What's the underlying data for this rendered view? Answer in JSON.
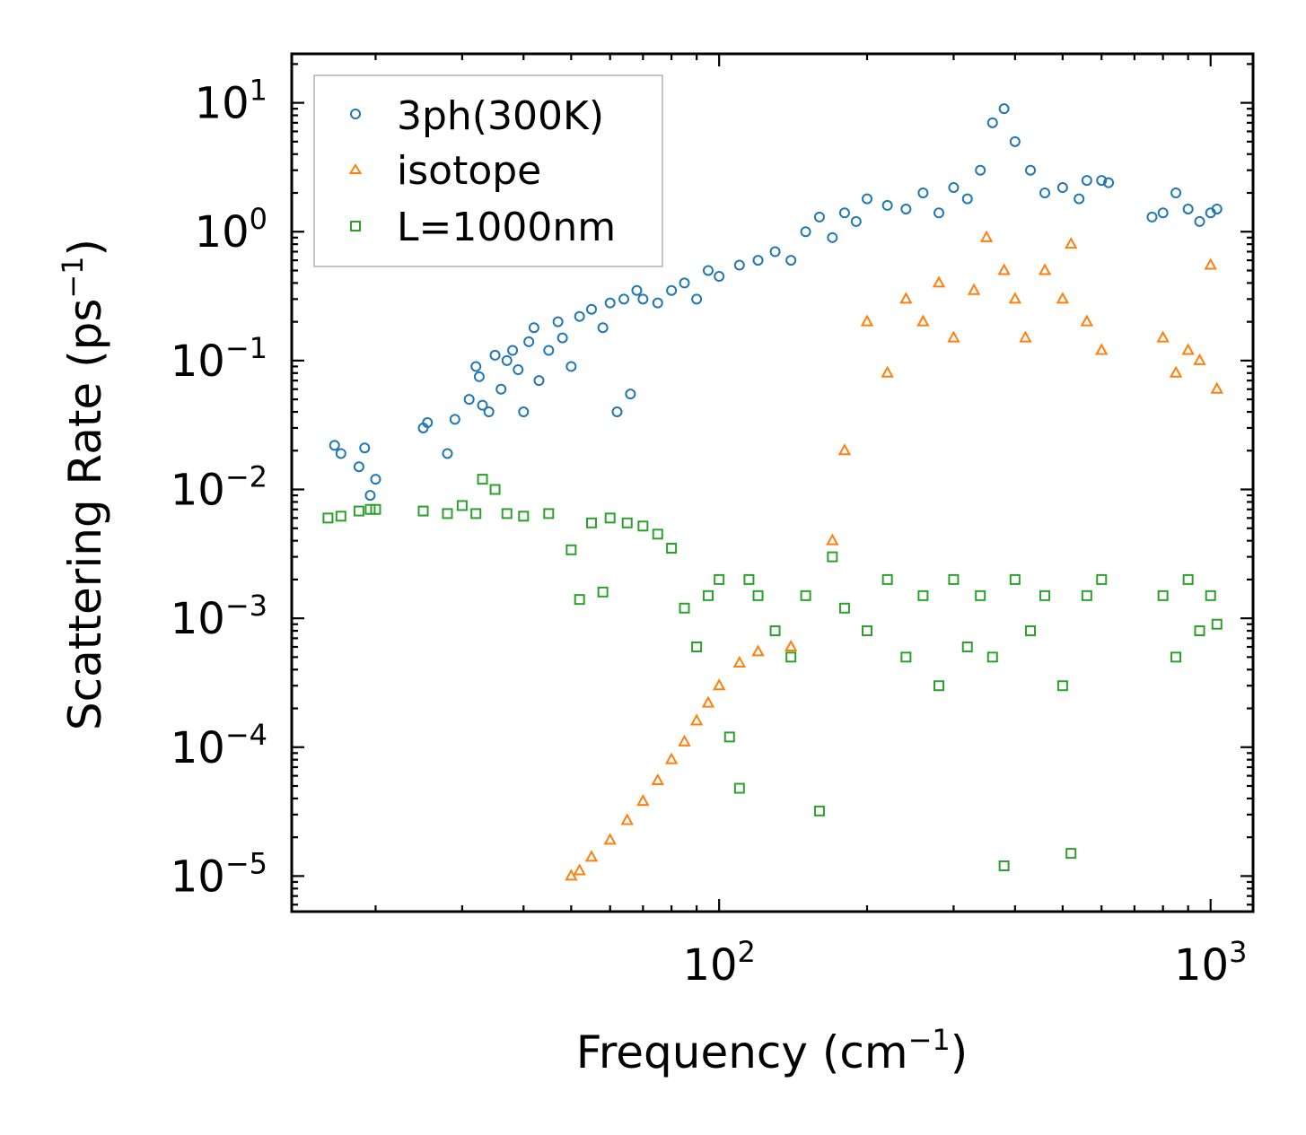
{
  "chart_data": {
    "type": "scatter",
    "xscale": "log",
    "yscale": "log",
    "xlim": [
      13.5,
      1220
    ],
    "ylim": [
      5.3e-06,
      24
    ],
    "xlabel": {
      "main": "Frequency (cm",
      "sup": "−1",
      "end": ")"
    },
    "ylabel": {
      "main": "Scattering Rate (ps",
      "sup": "−1",
      "end": ")"
    },
    "x_ticks": [
      {
        "value": 100,
        "base": "10",
        "exp": "2"
      },
      {
        "value": 1000,
        "base": "10",
        "exp": "3"
      }
    ],
    "y_ticks": [
      {
        "value": 1e-05,
        "base": "10",
        "exp": "−5"
      },
      {
        "value": 0.0001,
        "base": "10",
        "exp": "−4"
      },
      {
        "value": 0.001,
        "base": "10",
        "exp": "−3"
      },
      {
        "value": 0.01,
        "base": "10",
        "exp": "−2"
      },
      {
        "value": 0.1,
        "base": "10",
        "exp": "−1"
      },
      {
        "value": 1,
        "base": "10",
        "exp": "0"
      },
      {
        "value": 10,
        "base": "10",
        "exp": "1"
      }
    ],
    "legend_position": "top-left",
    "series": [
      {
        "name": "3ph(300K)",
        "marker": "circle",
        "color": "#1f77b4",
        "points": [
          [
            16.5,
            0.022
          ],
          [
            17.0,
            0.019
          ],
          [
            18.5,
            0.015
          ],
          [
            19.0,
            0.021
          ],
          [
            19.5,
            0.009
          ],
          [
            20.0,
            0.012
          ],
          [
            25,
            0.03
          ],
          [
            25.5,
            0.033
          ],
          [
            28,
            0.019
          ],
          [
            29,
            0.035
          ],
          [
            31,
            0.05
          ],
          [
            32,
            0.09
          ],
          [
            32.5,
            0.075
          ],
          [
            33,
            0.045
          ],
          [
            34,
            0.04
          ],
          [
            35,
            0.11
          ],
          [
            36,
            0.06
          ],
          [
            37,
            0.1
          ],
          [
            38,
            0.12
          ],
          [
            39,
            0.085
          ],
          [
            40,
            0.04
          ],
          [
            41,
            0.14
          ],
          [
            42,
            0.18
          ],
          [
            43,
            0.07
          ],
          [
            45,
            0.12
          ],
          [
            47,
            0.2
          ],
          [
            48,
            0.15
          ],
          [
            50,
            0.09
          ],
          [
            52,
            0.22
          ],
          [
            55,
            0.25
          ],
          [
            58,
            0.18
          ],
          [
            60,
            0.28
          ],
          [
            62,
            0.04
          ],
          [
            64,
            0.3
          ],
          [
            66,
            0.055
          ],
          [
            68,
            0.35
          ],
          [
            70,
            0.3
          ],
          [
            75,
            0.28
          ],
          [
            80,
            0.35
          ],
          [
            85,
            0.4
          ],
          [
            90,
            0.3
          ],
          [
            95,
            0.5
          ],
          [
            100,
            0.45
          ],
          [
            110,
            0.55
          ],
          [
            120,
            0.6
          ],
          [
            130,
            0.7
          ],
          [
            140,
            0.6
          ],
          [
            150,
            1.0
          ],
          [
            160,
            1.3
          ],
          [
            170,
            0.9
          ],
          [
            180,
            1.4
          ],
          [
            190,
            1.2
          ],
          [
            200,
            1.8
          ],
          [
            220,
            1.6
          ],
          [
            240,
            1.5
          ],
          [
            260,
            2.0
          ],
          [
            280,
            1.4
          ],
          [
            300,
            2.2
          ],
          [
            320,
            1.8
          ],
          [
            340,
            3.0
          ],
          [
            360,
            7.0
          ],
          [
            380,
            9.0
          ],
          [
            400,
            5.0
          ],
          [
            430,
            3.0
          ],
          [
            460,
            2.0
          ],
          [
            500,
            2.2
          ],
          [
            540,
            1.8
          ],
          [
            560,
            2.5
          ],
          [
            600,
            2.5
          ],
          [
            620,
            2.4
          ],
          [
            760,
            1.3
          ],
          [
            800,
            1.4
          ],
          [
            850,
            2.0
          ],
          [
            900,
            1.5
          ],
          [
            950,
            1.2
          ],
          [
            1000,
            1.4
          ],
          [
            1030,
            1.5
          ]
        ]
      },
      {
        "name": "isotope",
        "marker": "triangle",
        "color": "#ff7f0e",
        "points": [
          [
            50,
            1e-05
          ],
          [
            52,
            1.1e-05
          ],
          [
            55,
            1.4e-05
          ],
          [
            60,
            1.9e-05
          ],
          [
            65,
            2.7e-05
          ],
          [
            70,
            3.8e-05
          ],
          [
            75,
            5.5e-05
          ],
          [
            80,
            8e-05
          ],
          [
            85,
            0.00011
          ],
          [
            90,
            0.00016
          ],
          [
            95,
            0.00022
          ],
          [
            100,
            0.0003
          ],
          [
            110,
            0.00045
          ],
          [
            120,
            0.00055
          ],
          [
            140,
            0.0006
          ],
          [
            170,
            0.004
          ],
          [
            180,
            0.02
          ],
          [
            200,
            0.2
          ],
          [
            220,
            0.08
          ],
          [
            240,
            0.3
          ],
          [
            260,
            0.2
          ],
          [
            280,
            0.4
          ],
          [
            300,
            0.15
          ],
          [
            330,
            0.35
          ],
          [
            350,
            0.9
          ],
          [
            380,
            0.5
          ],
          [
            400,
            0.3
          ],
          [
            420,
            0.15
          ],
          [
            460,
            0.5
          ],
          [
            500,
            0.3
          ],
          [
            520,
            0.8
          ],
          [
            560,
            0.2
          ],
          [
            600,
            0.12
          ],
          [
            800,
            0.15
          ],
          [
            850,
            0.08
          ],
          [
            900,
            0.12
          ],
          [
            950,
            0.1
          ],
          [
            1000,
            0.55
          ],
          [
            1030,
            0.06
          ]
        ]
      },
      {
        "name": "L=1000nm",
        "marker": "square",
        "color": "#2ca02c",
        "points": [
          [
            16,
            0.006
          ],
          [
            17,
            0.0062
          ],
          [
            18.5,
            0.0068
          ],
          [
            19.5,
            0.007
          ],
          [
            20,
            0.007
          ],
          [
            25,
            0.0068
          ],
          [
            28,
            0.0065
          ],
          [
            30,
            0.0075
          ],
          [
            32,
            0.0065
          ],
          [
            33,
            0.012
          ],
          [
            35,
            0.01
          ],
          [
            37,
            0.0065
          ],
          [
            40,
            0.0062
          ],
          [
            45,
            0.0065
          ],
          [
            50,
            0.0034
          ],
          [
            52,
            0.0014
          ],
          [
            55,
            0.0055
          ],
          [
            58,
            0.0016
          ],
          [
            60,
            0.006
          ],
          [
            65,
            0.0055
          ],
          [
            70,
            0.0052
          ],
          [
            75,
            0.0045
          ],
          [
            80,
            0.0035
          ],
          [
            85,
            0.0012
          ],
          [
            90,
            0.0006
          ],
          [
            95,
            0.0015
          ],
          [
            100,
            0.002
          ],
          [
            105,
            0.00012
          ],
          [
            110,
            4.8e-05
          ],
          [
            115,
            0.002
          ],
          [
            120,
            0.0015
          ],
          [
            130,
            0.0008
          ],
          [
            140,
            0.0005
          ],
          [
            150,
            0.0015
          ],
          [
            160,
            3.2e-05
          ],
          [
            170,
            0.003
          ],
          [
            180,
            0.0012
          ],
          [
            200,
            0.0008
          ],
          [
            220,
            0.002
          ],
          [
            240,
            0.0005
          ],
          [
            260,
            0.0015
          ],
          [
            280,
            0.0003
          ],
          [
            300,
            0.002
          ],
          [
            320,
            0.0006
          ],
          [
            340,
            0.0015
          ],
          [
            360,
            0.0005
          ],
          [
            380,
            1.2e-05
          ],
          [
            400,
            0.002
          ],
          [
            430,
            0.0008
          ],
          [
            460,
            0.0015
          ],
          [
            500,
            0.0003
          ],
          [
            520,
            1.5e-05
          ],
          [
            560,
            0.0015
          ],
          [
            600,
            0.002
          ],
          [
            800,
            0.0015
          ],
          [
            850,
            0.0005
          ],
          [
            900,
            0.002
          ],
          [
            950,
            0.0008
          ],
          [
            1000,
            0.0015
          ],
          [
            1030,
            0.0009
          ]
        ]
      }
    ]
  }
}
